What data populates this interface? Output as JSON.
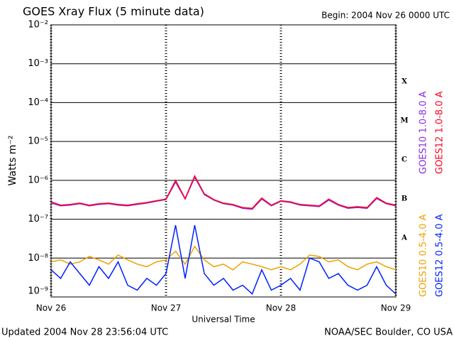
{
  "chart_data": {
    "type": "line",
    "title": "GOES Xray Flux (5 minute data)",
    "subtitle": "Begin:  2004 Nov 26 0000 UTC",
    "x_label": "Universal Time",
    "y_label": "Watts m⁻²",
    "footer_left": "Updated 2004 Nov 28 23:56:04 UTC",
    "footer_right": "NOAA/SEC Boulder, CO USA",
    "annotations": [
      "X",
      "M",
      "C",
      "B",
      "A"
    ],
    "log_y": true,
    "grid": true,
    "x": [
      0,
      2,
      4,
      6,
      8,
      10,
      12,
      14,
      16,
      18,
      20,
      22,
      24,
      26,
      28,
      30,
      32,
      34,
      36,
      38,
      40,
      42,
      44,
      46,
      48,
      50,
      52,
      54,
      56,
      58,
      60,
      62,
      64,
      66,
      68,
      70,
      72
    ],
    "xlim": [
      0,
      72
    ],
    "xticks": [
      {
        "value": 0,
        "label": "Nov 26"
      },
      {
        "value": 24,
        "label": "Nov 27"
      },
      {
        "value": 48,
        "label": "Nov 28"
      },
      {
        "value": 72,
        "label": "Nov 29"
      }
    ],
    "ylim": [
      1e-09,
      0.01
    ],
    "yticks": [
      {
        "value": 1e-09,
        "label": "10⁻⁹"
      },
      {
        "value": 1e-08,
        "label": "10⁻⁸"
      },
      {
        "value": 1e-07,
        "label": "10⁻⁷"
      },
      {
        "value": 1e-06,
        "label": "10⁻⁶"
      },
      {
        "value": 1e-05,
        "label": "10⁻⁵"
      },
      {
        "value": 0.0001,
        "label": "10⁻⁴"
      },
      {
        "value": 0.001,
        "label": "10⁻³"
      },
      {
        "value": 0.01,
        "label": "10⁻²"
      }
    ],
    "series": [
      {
        "name": "GOES10 1.0-8.0 A",
        "color": "#8a2be2",
        "values": [
          2.6e-07,
          2.2e-07,
          2.3e-07,
          2.5e-07,
          2.2e-07,
          2.4e-07,
          2.5e-07,
          2.3e-07,
          2.2e-07,
          2.4e-07,
          2.6e-07,
          2.9e-07,
          3.2e-07,
          9e-07,
          3.3e-07,
          1.2e-06,
          4.3e-07,
          3.1e-07,
          2.5e-07,
          2.3e-07,
          1.9e-07,
          1.8e-07,
          3.3e-07,
          2.2e-07,
          2.9e-07,
          2.7e-07,
          2.3e-07,
          2.2e-07,
          2.1e-07,
          3.1e-07,
          2.3e-07,
          1.9e-07,
          2e-07,
          1.9e-07,
          3.4e-07,
          2.5e-07,
          2.2e-07
        ]
      },
      {
        "name": "GOES12 1.0-8.0 A",
        "color": "#ff0020",
        "values": [
          2.8e-07,
          2.3e-07,
          2.4e-07,
          2.6e-07,
          2.3e-07,
          2.5e-07,
          2.6e-07,
          2.4e-07,
          2.3e-07,
          2.5e-07,
          2.7e-07,
          3e-07,
          3.3e-07,
          1e-06,
          3.4e-07,
          1.3e-06,
          4.5e-07,
          3.2e-07,
          2.6e-07,
          2.4e-07,
          2e-07,
          1.9e-07,
          3.5e-07,
          2.3e-07,
          3e-07,
          2.8e-07,
          2.4e-07,
          2.3e-07,
          2.2e-07,
          3.3e-07,
          2.4e-07,
          2e-07,
          2.1e-07,
          2e-07,
          3.6e-07,
          2.6e-07,
          2.3e-07
        ]
      },
      {
        "name": "GOES10 0.5-4.0 A",
        "color": "#f0a000",
        "values": [
          8e-09,
          9e-09,
          7e-09,
          8e-09,
          1.1e-08,
          9e-09,
          7e-09,
          1.2e-08,
          9e-09,
          7e-09,
          6e-09,
          8e-09,
          9e-09,
          1.5e-08,
          7e-09,
          2e-08,
          9e-09,
          6e-09,
          7e-09,
          5e-09,
          8e-09,
          7e-09,
          6e-09,
          5e-09,
          6e-09,
          5e-09,
          7e-09,
          1.2e-08,
          1.1e-08,
          8e-09,
          9e-09,
          6e-09,
          5e-09,
          7e-09,
          8e-09,
          6e-09,
          5e-09
        ]
      },
      {
        "name": "GOES12 0.5-4.0 A",
        "color": "#0020ff",
        "values": [
          5e-09,
          3e-09,
          8e-09,
          4e-09,
          2e-09,
          6e-09,
          3e-09,
          8e-09,
          2e-09,
          1.5e-09,
          3e-09,
          2e-09,
          4e-09,
          7e-08,
          3e-09,
          7e-08,
          4e-09,
          2e-09,
          3e-09,
          1.5e-09,
          2e-09,
          1.2e-09,
          5e-09,
          1.5e-09,
          2e-09,
          3e-09,
          1.5e-09,
          1e-08,
          8e-09,
          3e-09,
          4e-09,
          2e-09,
          1.5e-09,
          2e-09,
          6e-09,
          2e-09,
          1.2e-09
        ]
      }
    ]
  }
}
